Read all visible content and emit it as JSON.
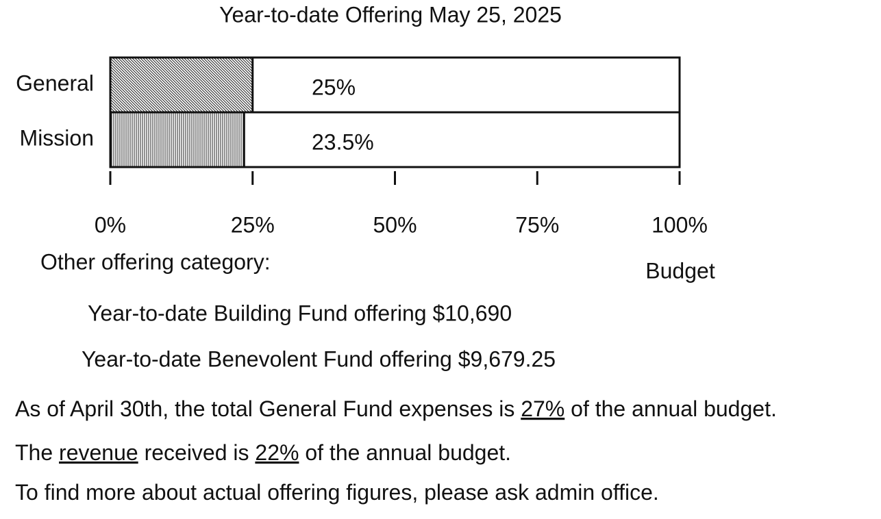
{
  "chart_data": {
    "type": "hbar",
    "title": "Year-to-date Offering May 25, 2025",
    "categories": [
      "General",
      "Mission"
    ],
    "values": [
      25,
      23.5
    ],
    "value_labels": [
      "25%",
      "23.5%"
    ],
    "xlim": [
      0,
      100
    ],
    "xticks": [
      {
        "value": 0,
        "label": "0%"
      },
      {
        "value": 25,
        "label": "25%"
      },
      {
        "value": 50,
        "label": "50%"
      },
      {
        "value": 75,
        "label": "75%"
      },
      {
        "value": 100,
        "label": "100%"
      }
    ],
    "xlabel": "Budget",
    "patterns": [
      "diagonal",
      "vertical"
    ]
  },
  "other": {
    "heading": "Other offering category:",
    "items": [
      "Year-to-date Building Fund offering $10,690",
      "Year-to-date Benevolent Fund offering $9,679.25"
    ]
  },
  "notes": [
    [
      "As of April 30th, the total General Fund expenses is ",
      "27%",
      " of the annual budget."
    ],
    [
      "The ",
      "revenue",
      " received is ",
      "22%",
      " of the annual budget."
    ],
    [
      "To find more about actual offering figures, please ask admin office."
    ]
  ],
  "underlined": [
    [
      1
    ],
    [
      1,
      3
    ],
    []
  ]
}
